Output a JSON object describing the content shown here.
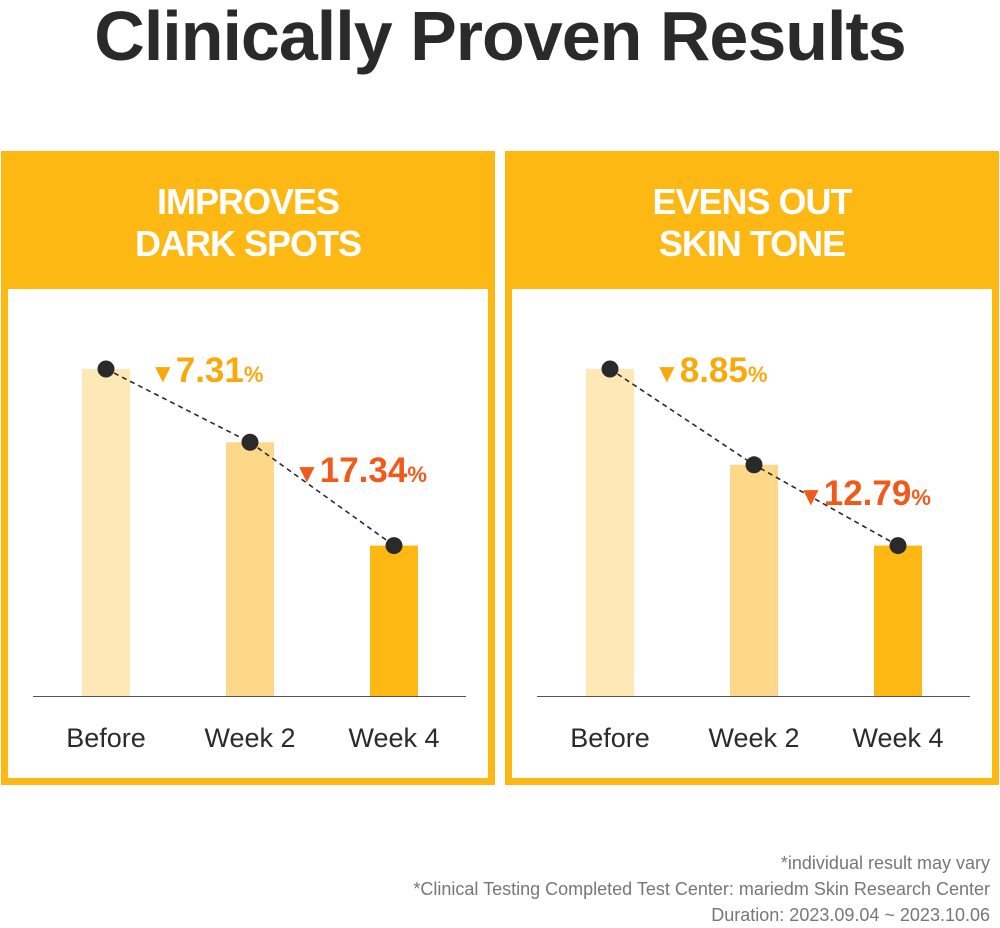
{
  "title": "Clinically Proven Results",
  "colors": {
    "panel": "#FDB813",
    "bar_before": "#FDE8B6",
    "bar_week2": "#FDD888",
    "bar_week4": "#FDB813",
    "pct_small": "#F9A90C",
    "pct_large": "#F05A1A",
    "dot": "#2a2a2a"
  },
  "panels": [
    {
      "title_lines": [
        "IMPROVES",
        "DARK SPOTS"
      ],
      "change_labels": [
        {
          "value": "7.31",
          "unit": "%"
        },
        {
          "value": "17.34",
          "unit": "%"
        }
      ]
    },
    {
      "title_lines": [
        "EVENS OUT",
        "SKIN TONE"
      ],
      "change_labels": [
        {
          "value": "8.85",
          "unit": "%"
        },
        {
          "value": "12.79",
          "unit": "%"
        }
      ]
    }
  ],
  "chart_data": [
    {
      "type": "bar",
      "title": "IMPROVES DARK SPOTS",
      "categories": [
        "Before",
        "Week 2",
        "Week 4"
      ],
      "values": [
        100,
        77.6,
        46
      ],
      "annotations": [
        "▼7.31%",
        "▼17.34%"
      ],
      "connected_line": true,
      "grid": false
    },
    {
      "type": "bar",
      "title": "EVENS OUT SKIN TONE",
      "categories": [
        "Before",
        "Week 2",
        "Week 4"
      ],
      "values": [
        100,
        70.7,
        46
      ],
      "annotations": [
        "▼8.85%",
        "▼12.79%"
      ],
      "connected_line": true,
      "grid": false
    }
  ],
  "footnotes": [
    "*individual result may vary",
    "*Clinical Testing Completed Test Center: mariedm Skin Research Center",
    "Duration: 2023.09.04 ~ 2023.10.06"
  ]
}
